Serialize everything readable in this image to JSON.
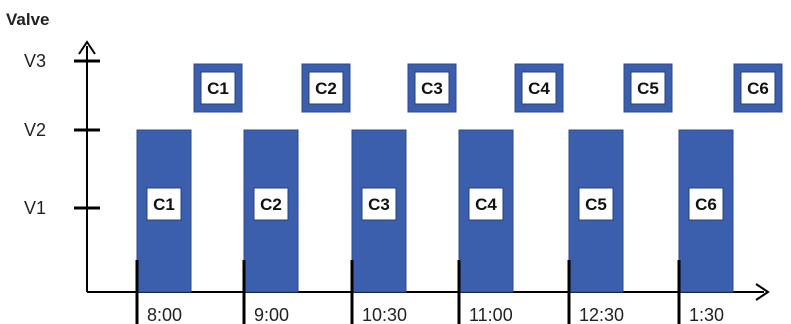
{
  "chart_data": {
    "type": "timeline",
    "y_title": "Valve",
    "y_levels": [
      "V1",
      "V2",
      "V3"
    ],
    "x_times": [
      "8:00",
      "9:00",
      "10:30",
      "11:00",
      "12:30",
      "1:30"
    ],
    "bars": [
      {
        "label": "C1",
        "time": "8:00"
      },
      {
        "label": "C2",
        "time": "9:00"
      },
      {
        "label": "C3",
        "time": "10:30"
      },
      {
        "label": "C4",
        "time": "11:00"
      },
      {
        "label": "C5",
        "time": "12:30"
      },
      {
        "label": "C6",
        "time": "1:30"
      }
    ],
    "top_labels": [
      "C1",
      "C2",
      "C3",
      "C4",
      "C5",
      "C6"
    ]
  },
  "colors": {
    "bar_fill": "#3b5fad",
    "bar_stroke": "#2c4a8c",
    "label_box_fill": "#ffffff",
    "axis": "#000000"
  }
}
